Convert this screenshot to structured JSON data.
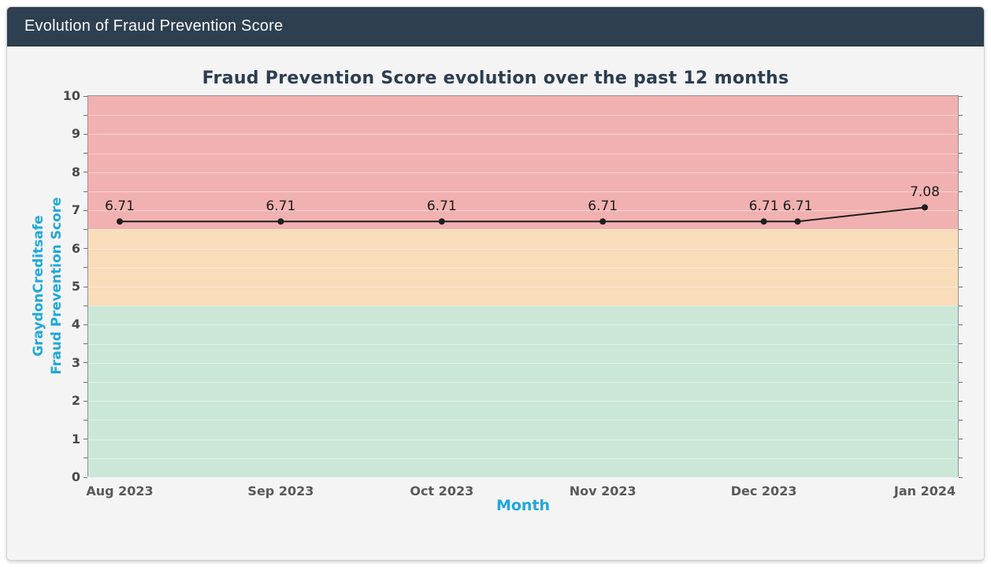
{
  "window": {
    "header_title": "Evolution of Fraud Prevention Score"
  },
  "colors": {
    "header_bg": "#2e3f50",
    "header_text": "#f7f8f9",
    "card_bg": "#f5f4f5",
    "accent_cyan": "#1fa8dc",
    "title_color": "#2c3e50",
    "line_color": "#1f1f1f",
    "band_red": "#f2b1b1",
    "band_orange": "#f9dcba",
    "band_green": "#cbe7d7"
  },
  "chart_data": {
    "type": "line",
    "title": "Fraud Prevention Score evolution over the past 12 months",
    "xlabel": "Month",
    "ylabel_lines": [
      "GraydonCreditsafe",
      "Fraud Prevention Score"
    ],
    "x_tick_labels": [
      "Aug 2023",
      "Sep 2023",
      "Oct 2023",
      "Nov 2023",
      "Dec 2023",
      "Jan 2024"
    ],
    "ylim": [
      0,
      10
    ],
    "y_tick_step": 1,
    "y_minor_tick_step": 0.5,
    "grid": "horizontal minor gridlines, light",
    "legend": "none",
    "bands": [
      {
        "name": "high-band",
        "from": 6.5,
        "to": 10,
        "color": "#f2b1b1"
      },
      {
        "name": "mid-band",
        "from": 4.5,
        "to": 6.5,
        "color": "#f9dcba"
      },
      {
        "name": "low-band",
        "from": 0,
        "to": 4.5,
        "color": "#cbe7d7"
      }
    ],
    "series": [
      {
        "name": "Fraud Prevention Score",
        "color": "#1f1f1f",
        "points": [
          {
            "x": 0,
            "y": 6.71,
            "label": "6.71"
          },
          {
            "x": 1,
            "y": 6.71,
            "label": "6.71"
          },
          {
            "x": 2,
            "y": 6.71,
            "label": "6.71"
          },
          {
            "x": 3,
            "y": 6.71,
            "label": "6.71"
          },
          {
            "x": 4,
            "y": 6.71,
            "label": "6.71"
          },
          {
            "x": 4.21,
            "y": 6.71,
            "label": "6.71"
          },
          {
            "x": 5,
            "y": 7.08,
            "label": "7.08"
          }
        ]
      }
    ]
  }
}
